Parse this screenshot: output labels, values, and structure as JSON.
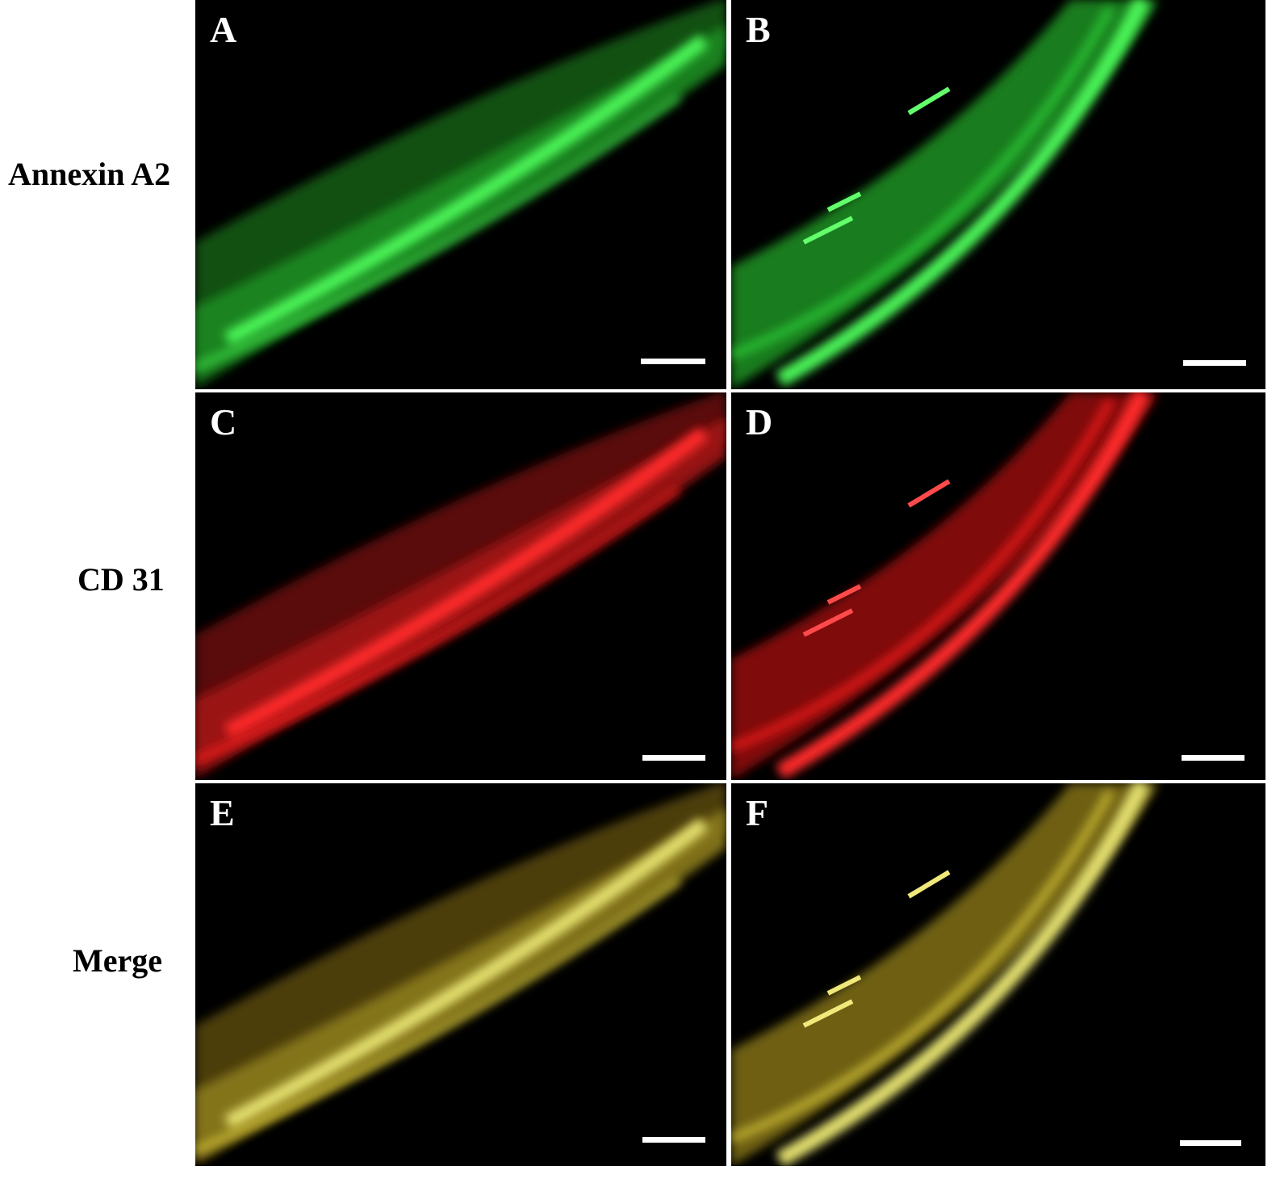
{
  "row_labels": {
    "row1": "Annexin A2",
    "row2": "CD 31",
    "row3": "Merge"
  },
  "panels": {
    "A": "A",
    "B": "B",
    "C": "C",
    "D": "D",
    "E": "E",
    "F": "F"
  },
  "channel_colors": {
    "annexin": "#2fd43a",
    "cd31": "#ff1a1a",
    "merge": "#d9c93a"
  },
  "icons": {
    "scale_bar": "scale-bar-icon"
  }
}
